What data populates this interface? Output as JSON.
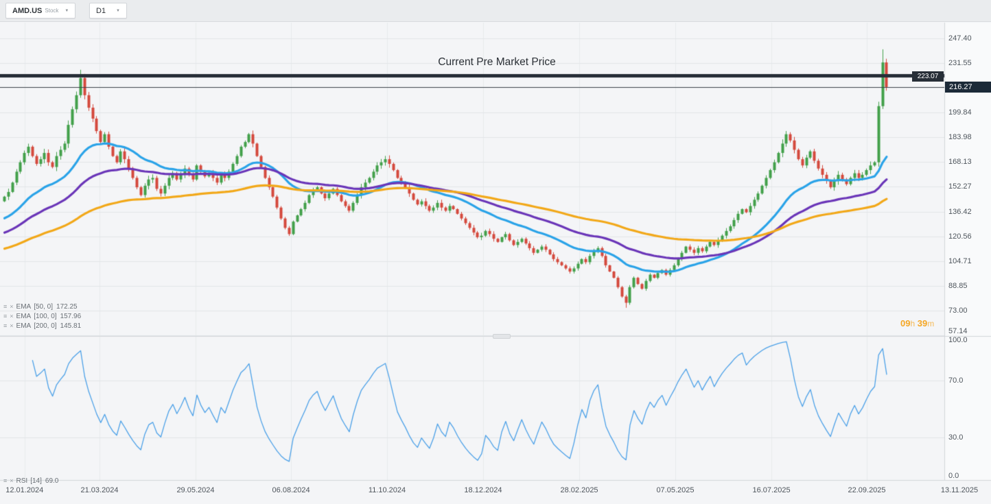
{
  "toolbar": {
    "symbol": "AMD.US",
    "instrument_type": "Stock",
    "timeframe": "D1"
  },
  "icons": {
    "dropdown_caret": "▼",
    "indicator_settings": "≡",
    "indicator_remove": "×"
  },
  "annotations": {
    "premarket_label": "Current Pre Market Price",
    "premarket_price_label": "223.07",
    "current_price_label": "216.27",
    "countdown": {
      "hours": "09",
      "hours_unit": "h",
      "minutes": "39",
      "minutes_unit": "m"
    }
  },
  "indicators": {
    "emas": [
      {
        "name": "EMA",
        "params": "[50, 0]",
        "value": "172.25"
      },
      {
        "name": "EMA",
        "params": "[100, 0]",
        "value": "157.96"
      },
      {
        "name": "EMA",
        "params": "[200, 0]",
        "value": "145.81"
      }
    ],
    "rsi": {
      "name": "RSI",
      "params": "[14]",
      "value": "69.0"
    }
  },
  "chart_data": {
    "type": "candlestick",
    "symbol": "AMD.US",
    "timeframe": "D1",
    "levels": {
      "premarket": 223.07,
      "current": 216.27
    },
    "price_ticks": [
      {
        "label": "247.40",
        "value": 247.4
      },
      {
        "label": "231.55",
        "value": 231.55
      },
      {
        "label": "199.84",
        "value": 199.84
      },
      {
        "label": "183.98",
        "value": 183.98
      },
      {
        "label": "168.13",
        "value": 168.13
      },
      {
        "label": "152.27",
        "value": 152.27
      },
      {
        "label": "136.42",
        "value": 136.42
      },
      {
        "label": "120.56",
        "value": 120.56
      },
      {
        "label": "104.71",
        "value": 104.71
      },
      {
        "label": "88.85",
        "value": 88.85
      },
      {
        "label": "73.00",
        "value": 73.0
      },
      {
        "label": "57.14",
        "value": 57.14
      }
    ],
    "rsi_ticks": [
      {
        "label": "100.0",
        "value": 100
      },
      {
        "label": "70.0",
        "value": 70
      },
      {
        "label": "30.0",
        "value": 30
      },
      {
        "label": "0.0",
        "value": 0
      }
    ],
    "x_labels": [
      {
        "text": "12.01.2024",
        "f": 0.026
      },
      {
        "text": "21.03.2024",
        "f": 0.1054
      },
      {
        "text": "29.05.2024",
        "f": 0.2071
      },
      {
        "text": "06.08.2024",
        "f": 0.3082
      },
      {
        "text": "11.10.2024",
        "f": 0.4099
      },
      {
        "text": "18.12.2024",
        "f": 0.5116
      },
      {
        "text": "28.02.2025",
        "f": 0.6134
      },
      {
        "text": "07.05.2025",
        "f": 0.7151
      },
      {
        "text": "16.07.2025",
        "f": 0.8169
      },
      {
        "text": "22.09.2025",
        "f": 0.9179
      },
      {
        "text": "13.11.2025",
        "f": 1.016
      }
    ],
    "candles_end_fraction": 0.94,
    "first_open": 143,
    "closes": [
      146,
      149,
      155,
      162,
      168,
      174,
      178,
      172,
      167,
      170,
      174,
      168,
      165,
      172,
      176,
      180,
      192,
      202,
      211,
      222,
      211,
      203,
      196,
      188,
      181,
      186,
      178,
      172,
      168,
      175,
      170,
      164,
      158,
      152,
      147,
      153,
      157,
      158,
      151,
      148,
      153,
      158,
      161,
      157,
      160,
      164,
      160,
      157,
      166,
      162,
      159,
      161,
      158,
      155,
      160,
      158,
      162,
      167,
      172,
      178,
      181,
      186,
      180,
      172,
      165,
      158,
      152,
      146,
      139,
      132,
      126,
      122,
      130,
      134,
      138,
      142,
      147,
      150,
      152,
      148,
      145,
      148,
      151,
      147,
      143,
      140,
      137,
      142,
      147,
      152,
      155,
      158,
      162,
      166,
      168,
      170,
      167,
      163,
      158,
      155,
      152,
      148,
      144,
      141,
      143,
      140,
      137,
      139,
      142,
      139,
      137,
      140,
      138,
      135,
      132,
      129,
      126,
      123,
      120,
      121,
      124,
      122,
      119,
      117,
      120,
      122,
      118,
      115,
      117,
      119,
      116,
      113,
      110,
      112,
      114,
      112,
      109,
      106,
      104,
      102,
      100,
      98,
      100,
      103,
      106,
      104,
      108,
      111,
      113,
      108,
      102,
      98,
      94,
      88,
      82,
      78,
      88,
      94,
      90,
      87,
      92,
      96,
      94,
      97,
      99,
      96,
      99,
      102,
      106,
      110,
      114,
      112,
      110,
      113,
      111,
      114,
      117,
      115,
      118,
      121,
      124,
      127,
      131,
      135,
      138,
      136,
      140,
      144,
      148,
      153,
      158,
      163,
      168,
      174,
      180,
      186,
      182,
      176,
      170,
      166,
      171,
      175,
      169,
      164,
      160,
      156,
      152,
      156,
      160,
      157,
      154,
      158,
      161,
      158,
      160,
      163,
      166,
      168,
      204,
      232,
      216.27
    ],
    "wick_high_overrides": {
      "19": 227.3,
      "219": 240.4
    },
    "wick_low_overrides": {
      "155": 74.8
    },
    "overlays": [
      {
        "name": "EMA 50",
        "span_samples": 25,
        "seed": 131,
        "color": "#2aa3e8",
        "width": 3.2
      },
      {
        "name": "EMA 100",
        "span_samples": 50,
        "seed": 122,
        "color": "#6a35b8",
        "width": 3.2
      },
      {
        "name": "EMA 200",
        "span_samples": 100,
        "seed": 112,
        "color": "#f2a818",
        "width": 3.2
      }
    ],
    "rsi_period": 7,
    "colors": {
      "up": "#42a04a",
      "down": "#d4493d",
      "plot_bg": "#f4f5f7",
      "axis_bg": "#f9fafb",
      "grid": "#e2e5e8",
      "vgrid": "#e9ebec",
      "divider": "#d2d5d9",
      "rsi": "#4aa0e8",
      "premarket_line": "#272e37",
      "current_line": "#3a4148"
    }
  }
}
